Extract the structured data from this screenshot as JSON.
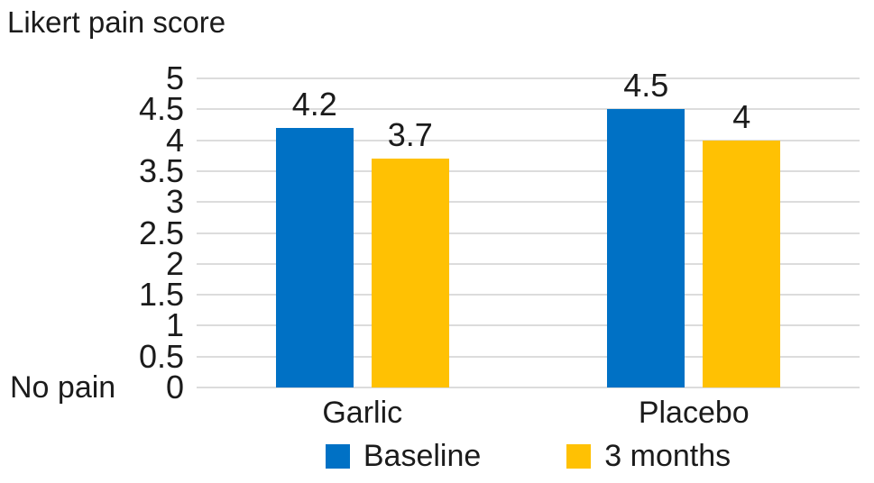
{
  "header": {
    "title": "Likert pain score"
  },
  "chart_data": {
    "type": "bar",
    "title": "Likert pain score",
    "categories": [
      "Garlic",
      "Placebo"
    ],
    "series": [
      {
        "name": "Baseline",
        "color": "#0071C5",
        "values": [
          4.2,
          4.5
        ],
        "labels": [
          "4.2",
          "4.5"
        ]
      },
      {
        "name": "3 months",
        "color": "#FFC103",
        "values": [
          3.7,
          4
        ],
        "labels": [
          "3.7",
          "4"
        ]
      }
    ],
    "ylabel": "Likert pain score",
    "ylim": [
      0,
      5
    ],
    "ytick_step": 0.5,
    "yticks": [
      5,
      4.5,
      4,
      3.5,
      3,
      2.5,
      2,
      1.5,
      1,
      0.5,
      0
    ],
    "ytick_labels": [
      "5",
      "4.5",
      "4",
      "3.5",
      "3",
      "2.5",
      "2",
      "1.5",
      "1",
      "0.5",
      "0"
    ],
    "zero_annotation": "No pain",
    "grid": "horizontal",
    "gridline_color": "#dcdcdc",
    "legend_position": "bottom",
    "legend": [
      "Baseline",
      "3 months"
    ]
  }
}
